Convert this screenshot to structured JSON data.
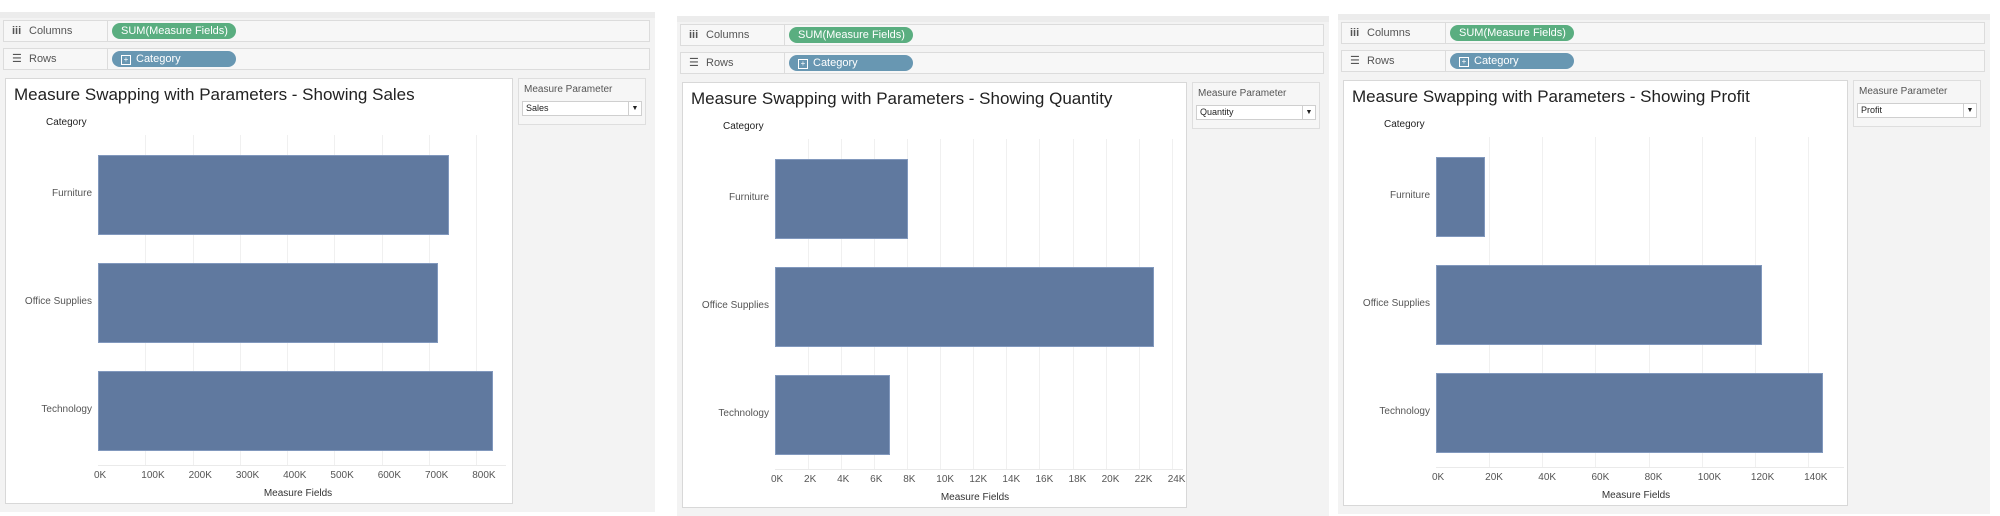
{
  "colors": {
    "bar": "#60799f",
    "columns_pill": "#5aae80",
    "rows_pill": "#6897b2"
  },
  "panels": [
    {
      "shelves": {
        "columns_label": "Columns",
        "columns_icon": "columns-icon",
        "columns_pill": "SUM(Measure Fields)",
        "rows_label": "Rows",
        "rows_icon": "rows-icon",
        "rows_pill": "Category"
      },
      "parameter": {
        "title": "Measure Parameter",
        "value": "Sales"
      },
      "chart": {
        "title": "Measure Swapping with Parameters - Showing Sales",
        "category_header": "Category"
      }
    },
    {
      "shelves": {
        "columns_label": "Columns",
        "columns_icon": "columns-icon",
        "columns_pill": "SUM(Measure Fields)",
        "rows_label": "Rows",
        "rows_icon": "rows-icon",
        "rows_pill": "Category"
      },
      "parameter": {
        "title": "Measure Parameter",
        "value": "Quantity"
      },
      "chart": {
        "title": "Measure Swapping with Parameters - Showing Quantity",
        "category_header": "Category"
      }
    },
    {
      "shelves": {
        "columns_label": "Columns",
        "columns_icon": "columns-icon",
        "columns_pill": "SUM(Measure Fields)",
        "rows_label": "Rows",
        "rows_icon": "rows-icon",
        "rows_pill": "Category"
      },
      "parameter": {
        "title": "Measure Parameter",
        "value": "Profit"
      },
      "chart": {
        "title": "Measure Swapping with Parameters - Showing Profit",
        "category_header": "Category"
      }
    }
  ],
  "chart_data": [
    {
      "type": "bar",
      "orientation": "horizontal",
      "title": "Measure Swapping with Parameters - Showing Sales",
      "ylabel": "Category",
      "xlabel": "Measure Fields",
      "categories": [
        "Furniture",
        "Office Supplies",
        "Technology"
      ],
      "values": [
        742000,
        719000,
        836000
      ],
      "xlim": [
        0,
        846000
      ],
      "ticks": [
        0,
        100000,
        200000,
        300000,
        400000,
        500000,
        600000,
        700000,
        800000
      ],
      "tick_labels": [
        "0K",
        "100K",
        "200K",
        "300K",
        "400K",
        "500K",
        "600K",
        "700K",
        "800K"
      ],
      "grid": true
    },
    {
      "type": "bar",
      "orientation": "horizontal",
      "title": "Measure Swapping with Parameters - Showing Quantity",
      "ylabel": "Category",
      "xlabel": "Measure Fields",
      "categories": [
        "Furniture",
        "Office Supplies",
        "Technology"
      ],
      "values": [
        8028,
        22906,
        6939
      ],
      "xlim": [
        0,
        24200
      ],
      "ticks": [
        0,
        2000,
        4000,
        6000,
        8000,
        10000,
        12000,
        14000,
        16000,
        18000,
        20000,
        22000,
        24000
      ],
      "tick_labels": [
        "0K",
        "2K",
        "4K",
        "6K",
        "8K",
        "10K",
        "12K",
        "14K",
        "16K",
        "18K",
        "20K",
        "22K",
        "24K"
      ],
      "grid": true
    },
    {
      "type": "bar",
      "orientation": "horizontal",
      "title": "Measure Swapping with Parameters - Showing Profit",
      "ylabel": "Category",
      "xlabel": "Measure Fields",
      "categories": [
        "Furniture",
        "Office Supplies",
        "Technology"
      ],
      "values": [
        18451,
        122491,
        145455
      ],
      "xlim": [
        0,
        150500
      ],
      "ticks": [
        0,
        20000,
        40000,
        60000,
        80000,
        100000,
        120000,
        140000
      ],
      "tick_labels": [
        "0K",
        "20K",
        "40K",
        "60K",
        "80K",
        "100K",
        "120K",
        "140K"
      ],
      "grid": true
    }
  ]
}
